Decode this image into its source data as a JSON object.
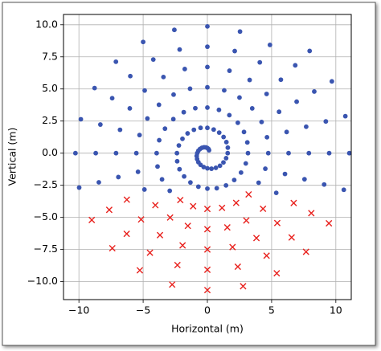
{
  "chart_data": {
    "type": "scatter",
    "x_label": "Horizontal (m)",
    "y_label": "Vertical (m)",
    "xlim": [
      -11.2,
      11.2
    ],
    "ylim": [
      -11.4,
      10.8
    ],
    "xticks": [
      {
        "value": -10,
        "label": "−10"
      },
      {
        "value": -5,
        "label": "−5"
      },
      0,
      5,
      10
    ],
    "yticks": [
      {
        "value": -10,
        "label": "−10.0"
      },
      {
        "value": -7.5,
        "label": "−7.5"
      },
      {
        "value": -5,
        "label": "−5.0"
      },
      {
        "value": -2.5,
        "label": "−2.5"
      },
      {
        "value": 0,
        "label": "0.0"
      },
      {
        "value": 2.5,
        "label": "2.5"
      },
      {
        "value": 5,
        "label": "5.0"
      },
      {
        "value": 7.5,
        "label": "7.5"
      },
      {
        "value": 10,
        "label": "10.0"
      }
    ],
    "grid": true,
    "series": [
      {
        "color": "#3a55b0",
        "marker": "o",
        "x": [
          0.13,
          0.09,
          0,
          -0.12,
          -0.26,
          -0.42,
          -0.57,
          -0.7,
          -0.79,
          -0.83,
          -0.8,
          -0.7,
          -0.53,
          -0.29,
          0,
          0.32,
          0.66,
          0.98,
          1.25,
          1.46,
          1.58,
          1.59,
          1.48,
          1.26,
          0.92,
          0.49,
          0,
          -0.53,
          -1.05,
          -1.54,
          -1.94,
          -2.22,
          -2.37,
          -2.35,
          -2.17,
          -1.81,
          -1.32,
          -0.7,
          0,
          0.73,
          1.45,
          2.09,
          2.62,
          2.99,
          3.16,
          3.11,
          2.85,
          2.37,
          1.71,
          0.9,
          0,
          -0.94,
          -1.84,
          -2.65,
          -3.3,
          -3.75,
          -3.95,
          -3.88,
          -3.53,
          -2.93,
          3.99,
          4.51,
          4.74,
          4.64,
          4.22,
          3.49,
          2.5,
          1.31,
          0,
          -1.35,
          -2.63,
          -3.77,
          -4.67,
          -5.28,
          -5.53,
          -5.4,
          -4.9,
          5.36,
          6.04,
          6.32,
          6.17,
          5.58,
          4.61,
          3.29,
          1.72,
          0,
          -1.76,
          -3.42,
          -4.88,
          -6.04,
          -6.8,
          -7.11,
          -6.93,
          7.56,
          7.9,
          7.69,
          6.95,
          5.72,
          4.08,
          2.13,
          0,
          -2.16,
          -4.21,
          -6.0,
          -7.41,
          -8.33,
          -8.69,
          -8.45,
          9.09,
          9.48,
          9.22,
          8.32,
          6.84,
          4.87,
          2.54,
          0,
          -2.57,
          -5.0,
          -7.12,
          -8.78,
          -9.85,
          -10.27,
          -9.98,
          10.62,
          11.05,
          10.74,
          9.69,
          7.96
        ],
        "y": [
          0.23,
          0.32,
          0.4,
          0.45,
          0.46,
          0.42,
          0.33,
          0.19,
          0,
          -0.22,
          -0.46,
          -0.7,
          -0.91,
          -1.08,
          -1.18,
          -1.21,
          -1.14,
          -0.98,
          -0.72,
          -0.39,
          0,
          0.43,
          0.86,
          1.26,
          1.6,
          1.84,
          1.97,
          1.97,
          1.82,
          1.54,
          1.12,
          0.6,
          0,
          -0.63,
          -1.25,
          -1.81,
          -2.28,
          -2.61,
          -2.76,
          -2.73,
          -2.51,
          -2.09,
          -1.51,
          -0.8,
          0,
          0.84,
          1.65,
          2.37,
          2.96,
          3.37,
          3.55,
          3.5,
          3.19,
          2.65,
          1.91,
          1.01,
          0,
          -1.04,
          -2.04,
          -2.93,
          -2.3,
          -1.21,
          0,
          1.24,
          2.43,
          3.49,
          4.33,
          4.89,
          5.13,
          5.02,
          4.56,
          3.77,
          2.7,
          1.41,
          0,
          -1.45,
          -2.83,
          -3.09,
          -1.62,
          0,
          1.65,
          3.22,
          4.61,
          5.7,
          6.42,
          6.71,
          6.55,
          5.93,
          4.88,
          3.49,
          1.82,
          0,
          -1.86,
          -2.03,
          0,
          2.06,
          4.01,
          5.72,
          7.07,
          7.95,
          8.29,
          8.07,
          7.29,
          6.0,
          4.28,
          2.23,
          0,
          -2.27,
          -2.44,
          0,
          2.47,
          4.8,
          6.84,
          8.43,
          9.47,
          9.87,
          9.6,
          8.66,
          7.12,
          5.07,
          2.64,
          0,
          -2.68,
          -2.85,
          0,
          2.88,
          5.59,
          7.96
        ]
      },
      {
        "color": "#e8201c",
        "marker": "x",
        "x": [
          -2.11,
          -1.11,
          0,
          1.14,
          2.24,
          3.21,
          -4.05,
          -2.9,
          -1.52,
          0,
          1.55,
          3.03,
          4.33,
          -6.27,
          -5.16,
          -3.69,
          -1.93,
          0,
          1.96,
          3.82,
          5.44,
          6.72,
          -7.64,
          -6.28,
          -4.47,
          -2.33,
          0,
          2.37,
          4.61,
          6.56,
          8.09,
          -9.0,
          -7.4,
          -5.26,
          -2.74,
          0,
          2.78,
          5.4,
          7.68,
          9.46
        ],
        "y": [
          -3.65,
          -4.13,
          -4.34,
          -4.26,
          -3.87,
          -3.21,
          -4.05,
          -5.01,
          -5.66,
          -5.92,
          -5.78,
          -5.24,
          -4.33,
          -3.62,
          -5.16,
          -6.38,
          -7.18,
          -7.5,
          -7.31,
          -6.61,
          -5.44,
          -3.88,
          -4.41,
          -6.28,
          -7.75,
          -8.71,
          -9.08,
          -8.84,
          -7.98,
          -6.56,
          -4.67,
          -5.2,
          -7.4,
          -9.12,
          -10.23,
          -10.66,
          -10.36,
          -9.35,
          -7.68,
          -5.46
        ]
      }
    ]
  }
}
